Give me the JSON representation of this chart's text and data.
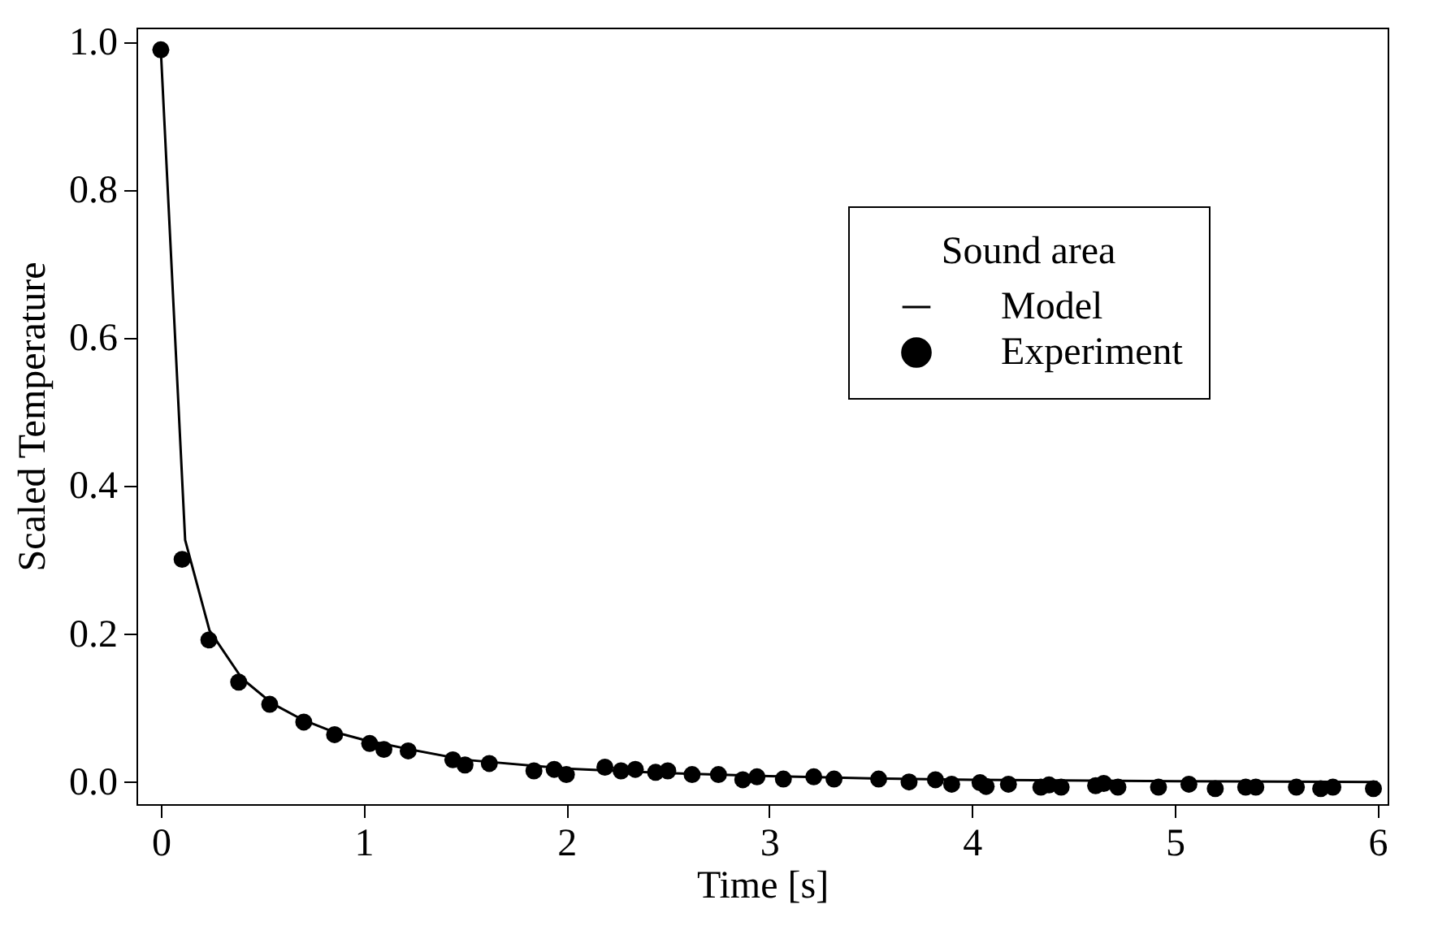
{
  "chart_data": {
    "type": "line",
    "xlabel": "Time [s]",
    "ylabel": "Scaled Temperature",
    "legend_title": "Sound area",
    "legend": "top right",
    "grid": false,
    "xlim": [
      -0.12,
      6.05
    ],
    "xticks": [
      0,
      1,
      2,
      3,
      4,
      5,
      6
    ],
    "ylim": [
      -0.03,
      1.02
    ],
    "yticks": [
      {
        "value": 0,
        "label": "0.0"
      },
      {
        "value": 0.2,
        "label": "0.2"
      },
      {
        "value": 0.4,
        "label": "0.4"
      },
      {
        "value": 0.6,
        "label": "0.6"
      },
      {
        "value": 0.8,
        "label": "0.8"
      },
      {
        "value": 1,
        "label": "1.0"
      }
    ],
    "series": [
      {
        "name": "Model",
        "color": "#000000",
        "line_style": "solid",
        "x": [
          0.0,
          0.12,
          0.24,
          0.4,
          0.55,
          0.7,
          0.85,
          1.0,
          1.23,
          1.5,
          2.0,
          2.5,
          3.0,
          3.5,
          4.0,
          5.0,
          6.0
        ],
        "values": [
          0.99,
          0.327,
          0.205,
          0.14,
          0.106,
          0.084,
          0.068,
          0.057,
          0.044,
          0.03,
          0.018,
          0.012,
          0.008,
          0.005,
          0.003,
          0.001,
          0.0
        ]
      },
      {
        "name": "Experiment",
        "type": "scatter",
        "color": "#000000",
        "marker": "circle",
        "x": [
          0.0,
          0.105,
          0.237,
          0.384,
          0.537,
          0.705,
          0.857,
          1.03,
          1.1,
          1.22,
          1.44,
          1.5,
          1.62,
          1.84,
          1.94,
          2.0,
          2.19,
          2.27,
          2.34,
          2.44,
          2.5,
          2.62,
          2.75,
          2.87,
          2.94,
          3.07,
          3.22,
          3.32,
          3.54,
          3.69,
          3.82,
          3.9,
          4.04,
          4.07,
          4.18,
          4.34,
          4.38,
          4.44,
          4.61,
          4.65,
          4.72,
          4.92,
          5.07,
          5.2,
          5.35,
          5.4,
          5.6,
          5.72,
          5.78,
          5.98
        ],
        "values": [
          0.99,
          0.301,
          0.192,
          0.135,
          0.105,
          0.081,
          0.064,
          0.052,
          0.044,
          0.042,
          0.03,
          0.023,
          0.025,
          0.015,
          0.017,
          0.01,
          0.02,
          0.015,
          0.017,
          0.013,
          0.015,
          0.01,
          0.01,
          0.003,
          0.007,
          0.004,
          0.007,
          0.004,
          0.004,
          0.0,
          0.003,
          -0.003,
          -0.001,
          -0.006,
          -0.003,
          -0.007,
          -0.004,
          -0.007,
          -0.005,
          -0.002,
          -0.007,
          -0.007,
          -0.003,
          -0.009,
          -0.007,
          -0.007,
          -0.007,
          -0.009,
          -0.007,
          -0.009
        ]
      }
    ]
  }
}
